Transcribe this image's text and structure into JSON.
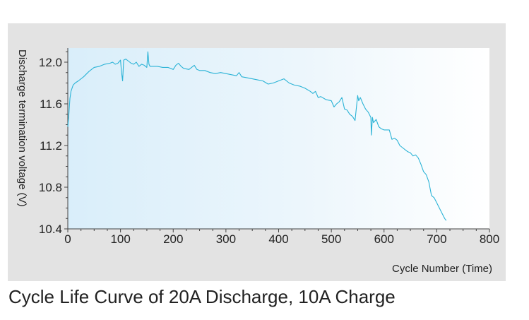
{
  "chart_data": {
    "type": "line",
    "title": "Cycle Life Curve of 20A Discharge, 10A Charge",
    "xlabel": "Cycle Number (Time)",
    "ylabel": "Discharge termination voltage (V)",
    "xlim": [
      0,
      800
    ],
    "ylim": [
      10.4,
      12.13
    ],
    "xticks": [
      "0",
      "100",
      "200",
      "300",
      "400",
      "500",
      "600",
      "700",
      "800"
    ],
    "yticks": [
      "12.0",
      "11.6",
      "11.2",
      "10.8",
      "10.4"
    ],
    "grid": false,
    "line_color": "#2bb3d6",
    "series": [
      {
        "x": [
          0,
          2,
          4,
          6,
          10,
          14,
          20,
          30,
          40,
          50,
          60,
          70,
          80,
          85,
          90,
          95,
          100,
          102,
          104,
          106,
          110,
          115,
          120,
          125,
          130,
          135,
          140,
          145,
          150,
          152,
          154,
          156,
          160,
          170,
          180,
          190,
          200,
          205,
          210,
          215,
          220,
          230,
          240,
          245,
          250,
          260,
          270,
          280,
          290,
          300,
          310,
          320,
          325,
          330,
          340,
          350,
          360,
          370,
          380,
          390,
          400,
          410,
          420,
          430,
          440,
          450,
          460,
          465,
          470,
          475,
          480,
          490,
          500,
          505,
          510,
          515,
          520,
          525,
          530,
          535,
          540,
          545,
          550,
          552,
          555,
          560,
          565,
          570,
          575,
          576,
          578,
          580,
          585,
          590,
          595,
          600,
          605,
          610,
          615,
          620,
          625,
          630,
          635,
          640,
          645,
          650,
          655,
          660,
          665,
          670,
          675,
          680,
          685,
          690,
          695,
          700,
          705,
          710,
          715,
          718
        ],
        "y": [
          11.38,
          11.5,
          11.65,
          11.72,
          11.78,
          11.8,
          11.82,
          11.86,
          11.91,
          11.95,
          11.96,
          11.98,
          11.99,
          12.0,
          11.98,
          11.99,
          12.02,
          11.9,
          11.82,
          12.02,
          12.03,
          12.01,
          11.99,
          11.98,
          12.0,
          11.96,
          11.98,
          11.97,
          11.95,
          12.1,
          11.98,
          11.96,
          11.96,
          11.96,
          11.95,
          11.95,
          11.93,
          11.97,
          11.99,
          11.96,
          11.94,
          11.93,
          11.97,
          11.93,
          11.92,
          11.92,
          11.9,
          11.89,
          11.9,
          11.89,
          11.88,
          11.87,
          11.9,
          11.86,
          11.85,
          11.84,
          11.83,
          11.82,
          11.79,
          11.8,
          11.82,
          11.84,
          11.8,
          11.78,
          11.77,
          11.75,
          11.72,
          11.7,
          11.72,
          11.66,
          11.67,
          11.64,
          11.63,
          11.57,
          11.6,
          11.62,
          11.66,
          11.55,
          11.54,
          11.5,
          11.48,
          11.44,
          11.68,
          11.63,
          11.66,
          11.6,
          11.55,
          11.52,
          11.47,
          11.3,
          11.47,
          11.42,
          11.45,
          11.38,
          11.36,
          11.35,
          11.35,
          11.35,
          11.26,
          11.27,
          11.25,
          11.2,
          11.18,
          11.16,
          11.14,
          11.13,
          11.1,
          11.11,
          11.08,
          11.02,
          10.95,
          10.92,
          10.85,
          10.72,
          10.7,
          10.65,
          10.6,
          10.55,
          10.5,
          10.48
        ]
      }
    ]
  }
}
